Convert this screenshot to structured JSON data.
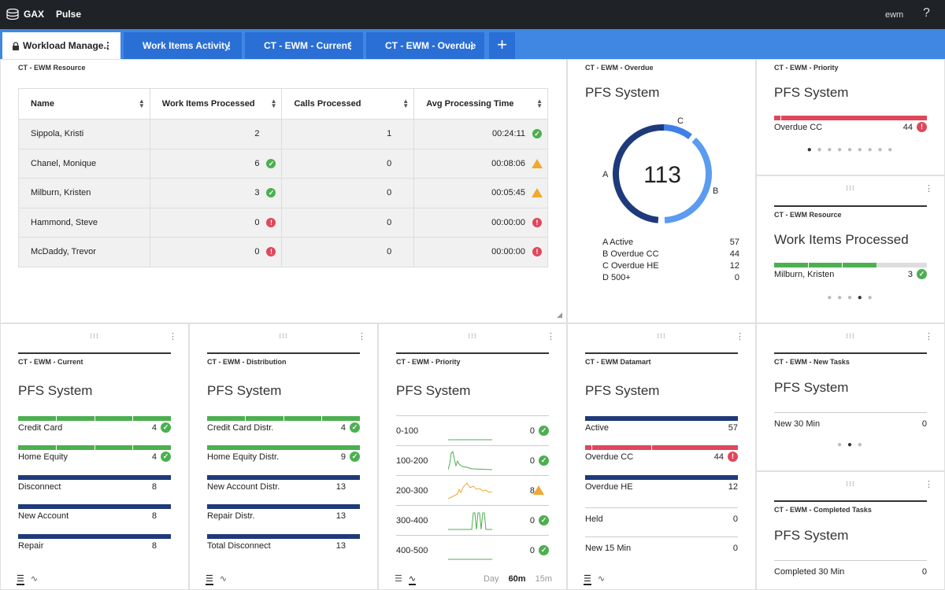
{
  "topbar": {
    "brand": "GAX",
    "app": "Pulse",
    "user": "ewm",
    "help": "?"
  },
  "tabs": [
    {
      "label": "Workload Manage..",
      "dots": "⋮"
    },
    {
      "label": "Work Items Activity",
      "dots": "⋮"
    },
    {
      "label": "CT - EWM - Current",
      "dots": "⋮"
    },
    {
      "label": "CT - EWM - Overdue",
      "dots": "⋮"
    }
  ],
  "add_tab": "+",
  "resource_table": {
    "header": "CT - EWM Resource",
    "columns": [
      "Name",
      "Work Items Processed",
      "Calls Processed",
      "Avg Processing Time"
    ],
    "rows": [
      {
        "name": "Sippola, Kristi",
        "items": "2",
        "calls": "1",
        "time": "00:24:11",
        "items_status": "",
        "time_status": "ok"
      },
      {
        "name": "Chanel, Monique",
        "items": "6",
        "calls": "0",
        "time": "00:08:06",
        "items_status": "ok",
        "time_status": "warn"
      },
      {
        "name": "Milburn, Kristen",
        "items": "3",
        "calls": "0",
        "time": "00:05:45",
        "items_status": "ok",
        "time_status": "warn"
      },
      {
        "name": "Hammond, Steve",
        "items": "0",
        "calls": "0",
        "time": "00:00:00",
        "items_status": "err",
        "time_status": "err"
      },
      {
        "name": "McDaddy, Trevor",
        "items": "0",
        "calls": "0",
        "time": "00:00:00",
        "items_status": "err",
        "time_status": "err"
      }
    ]
  },
  "overdue_donut": {
    "header": "CT - EWM - Overdue",
    "title": "PFS System",
    "total": "113",
    "segment_labels": {
      "a": "A",
      "b": "B",
      "c": "C"
    },
    "legend": [
      {
        "label": "A Active",
        "value": "57"
      },
      {
        "label": "B Overdue CC",
        "value": "44"
      },
      {
        "label": "C Overdue HE",
        "value": "12"
      },
      {
        "label": "D 500+",
        "value": "0"
      }
    ],
    "colors": {
      "a": "#1f3a7a",
      "b": "#5b9bf0",
      "c": "#3f80e8"
    }
  },
  "priority_small": {
    "header": "CT - EWM - Priority",
    "title": "PFS System",
    "row": {
      "label": "Overdue CC",
      "value": "44"
    },
    "pager": "● ● ● ● ● ● ● ● ●"
  },
  "resource_small": {
    "header": "CT - EWM Resource",
    "title": "Work Items Processed",
    "row": {
      "label": "Milburn, Kristen",
      "value": "3"
    },
    "pager": "● ● ● ● ●"
  },
  "current": {
    "header": "CT - EWM - Current",
    "title": "PFS System",
    "rows": [
      {
        "label": "Credit Card",
        "value": "4"
      },
      {
        "label": "Home Equity",
        "value": "4"
      },
      {
        "label": "Disconnect",
        "value": "8"
      },
      {
        "label": "New Account",
        "value": "8"
      },
      {
        "label": "Repair",
        "value": "8"
      }
    ]
  },
  "distribution": {
    "header": "CT - EWM - Distribution",
    "title": "PFS System",
    "rows": [
      {
        "label": "Credit Card Distr.",
        "value": "4"
      },
      {
        "label": "Home Equity Distr.",
        "value": "9"
      },
      {
        "label": "New Account Distr.",
        "value": "13"
      },
      {
        "label": "Repair Distr.",
        "value": "13"
      },
      {
        "label": "Total Disconnect",
        "value": "13"
      }
    ]
  },
  "priority": {
    "header": "CT - EWM - Priority",
    "title": "PFS System",
    "rows": [
      {
        "label": "0-100",
        "value": "0"
      },
      {
        "label": "100-200",
        "value": "0"
      },
      {
        "label": "200-300",
        "value": "8"
      },
      {
        "label": "300-400",
        "value": "0"
      },
      {
        "label": "400-500",
        "value": "0"
      }
    ],
    "range": [
      "Day",
      "60m",
      "15m"
    ]
  },
  "datamart": {
    "header": "CT - EWM Datamart",
    "title": "PFS System",
    "rows": [
      {
        "label": "Active",
        "value": "57"
      },
      {
        "label": "Overdue CC",
        "value": "44"
      },
      {
        "label": "Overdue HE",
        "value": "12"
      },
      {
        "label": "Held",
        "value": "0"
      },
      {
        "label": "New 15 Min",
        "value": "0"
      }
    ]
  },
  "new_tasks": {
    "header": "CT - EWM - New Tasks",
    "title": "PFS System",
    "row": {
      "label": "New 30 Min",
      "value": "0"
    },
    "pager": "● ● ●"
  },
  "completed": {
    "header": "CT - EWM - Completed Tasks",
    "title": "PFS System",
    "row": {
      "label": "Completed 30 Min",
      "value": "0"
    }
  },
  "glyphs": {
    "drag": "⁝⁝⁝",
    "menu": "⋮",
    "ok": "✓",
    "err": "!",
    "warn": "!",
    "sort": "▲▼"
  },
  "status_colors": {
    "ok": "#4caf50",
    "err": "#e0475a",
    "warn": "#f0a830",
    "navy": "#1f3a7a"
  }
}
